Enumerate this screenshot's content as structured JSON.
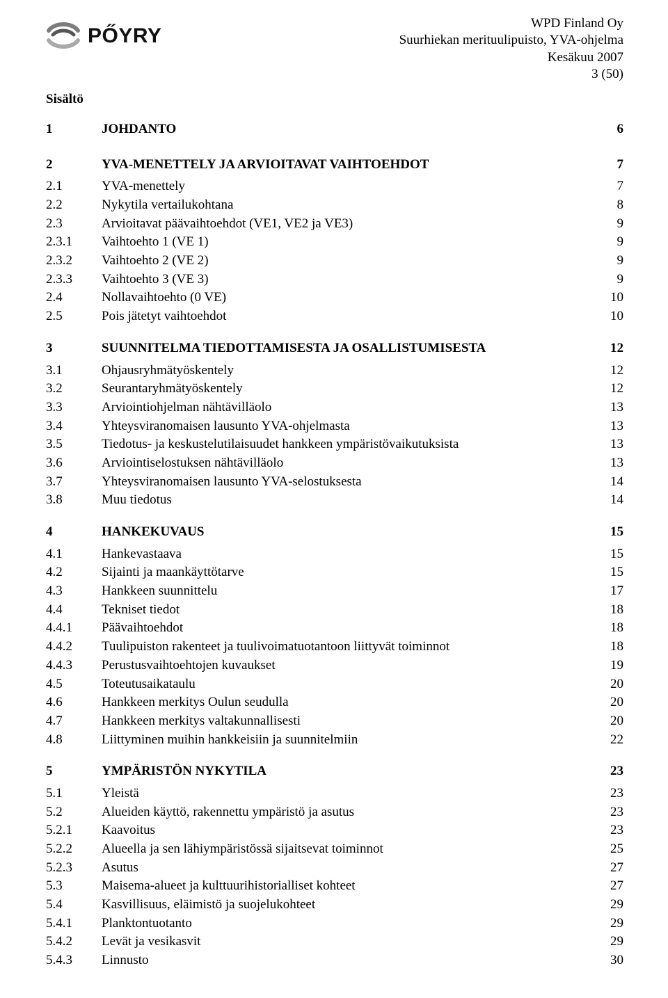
{
  "header": {
    "logo_brand": "PŐYRY",
    "meta": {
      "company": "WPD Finland Oy",
      "project": "Suurhiekan merituulipuisto, YVA-ohjelma",
      "date": "Kesäkuu 2007",
      "page": "3 (50)"
    }
  },
  "subtitle": "Sisältö",
  "toc": [
    {
      "level": 1,
      "num": "1",
      "title": "JOHDANTO",
      "page": "6"
    },
    {
      "level": 1,
      "num": "2",
      "title": "YVA-MENETTELY JA ARVIOITAVAT VAIHTOEHDOT",
      "page": "7"
    },
    {
      "level": 2,
      "num": "2.1",
      "title": "YVA-menettely",
      "page": "7"
    },
    {
      "level": 2,
      "num": "2.2",
      "title": "Nykytila vertailukohtana",
      "page": "8"
    },
    {
      "level": 2,
      "num": "2.3",
      "title": "Arvioitavat päävaihtoehdot (VE1, VE2 ja VE3)",
      "page": "9"
    },
    {
      "level": 3,
      "num": "2.3.1",
      "title": "Vaihtoehto 1 (VE 1)",
      "page": "9"
    },
    {
      "level": 3,
      "num": "2.3.2",
      "title": "Vaihtoehto 2 (VE 2)",
      "page": "9"
    },
    {
      "level": 3,
      "num": "2.3.3",
      "title": "Vaihtoehto 3 (VE 3)",
      "page": "9"
    },
    {
      "level": 2,
      "num": "2.4",
      "title": "Nollavaihtoehto (0 VE)",
      "page": "10"
    },
    {
      "level": 2,
      "num": "2.5",
      "title": "Pois jätetyt vaihtoehdot",
      "page": "10"
    },
    {
      "level": 1,
      "num": "3",
      "title": "SUUNNITELMA TIEDOTTAMISESTA JA OSALLISTUMISESTA",
      "page": "12"
    },
    {
      "level": 2,
      "num": "3.1",
      "title": "Ohjausryhmätyöskentely",
      "page": "12"
    },
    {
      "level": 2,
      "num": "3.2",
      "title": "Seurantaryhmätyöskentely",
      "page": "12"
    },
    {
      "level": 2,
      "num": "3.3",
      "title": "Arviointiohjelman nähtävilläolo",
      "page": "13"
    },
    {
      "level": 2,
      "num": "3.4",
      "title": "Yhteysviranomaisen lausunto YVA-ohjelmasta",
      "page": "13"
    },
    {
      "level": 2,
      "num": "3.5",
      "title": "Tiedotus- ja keskustelutilaisuudet hankkeen ympäristövaikutuksista",
      "page": "13"
    },
    {
      "level": 2,
      "num": "3.6",
      "title": "Arviointiselostuksen nähtävilläolo",
      "page": "13"
    },
    {
      "level": 2,
      "num": "3.7",
      "title": "Yhteysviranomaisen lausunto YVA-selostuksesta",
      "page": "14"
    },
    {
      "level": 2,
      "num": "3.8",
      "title": "Muu tiedotus",
      "page": "14"
    },
    {
      "level": 1,
      "num": "4",
      "title": "HANKEKUVAUS",
      "page": "15"
    },
    {
      "level": 2,
      "num": "4.1",
      "title": "Hankevastaava",
      "page": "15"
    },
    {
      "level": 2,
      "num": "4.2",
      "title": "Sijainti ja maankäyttötarve",
      "page": "15"
    },
    {
      "level": 2,
      "num": "4.3",
      "title": "Hankkeen suunnittelu",
      "page": "17"
    },
    {
      "level": 2,
      "num": "4.4",
      "title": "Tekniset tiedot",
      "page": "18"
    },
    {
      "level": 3,
      "num": "4.4.1",
      "title": "Päävaihtoehdot",
      "page": "18"
    },
    {
      "level": 3,
      "num": "4.4.2",
      "title": "Tuulipuiston rakenteet ja tuulivoimatuotantoon liittyvät toiminnot",
      "page": "18"
    },
    {
      "level": 3,
      "num": "4.4.3",
      "title": "Perustusvaihtoehtojen kuvaukset",
      "page": "19"
    },
    {
      "level": 2,
      "num": "4.5",
      "title": "Toteutusaikataulu",
      "page": "20"
    },
    {
      "level": 2,
      "num": "4.6",
      "title": "Hankkeen merkitys Oulun seudulla",
      "page": "20"
    },
    {
      "level": 2,
      "num": "4.7",
      "title": "Hankkeen merkitys valtakunnallisesti",
      "page": "20"
    },
    {
      "level": 2,
      "num": "4.8",
      "title": "Liittyminen muihin hankkeisiin ja suunnitelmiin",
      "page": "22"
    },
    {
      "level": 1,
      "num": "5",
      "title": "YMPÄRISTÖN NYKYTILA",
      "page": "23"
    },
    {
      "level": 2,
      "num": "5.1",
      "title": "Yleistä",
      "page": "23"
    },
    {
      "level": 2,
      "num": "5.2",
      "title": "Alueiden käyttö, rakennettu ympäristö ja asutus",
      "page": "23"
    },
    {
      "level": 3,
      "num": "5.2.1",
      "title": "Kaavoitus",
      "page": "23"
    },
    {
      "level": 3,
      "num": "5.2.2",
      "title": "Alueella ja sen lähiympäristössä sijaitsevat toiminnot",
      "page": "25"
    },
    {
      "level": 3,
      "num": "5.2.3",
      "title": "Asutus",
      "page": "27"
    },
    {
      "level": 2,
      "num": "5.3",
      "title": "Maisema-alueet ja kulttuurihistorialliset kohteet",
      "page": "27"
    },
    {
      "level": 2,
      "num": "5.4",
      "title": "Kasvillisuus, eläimistö ja suojelukohteet",
      "page": "29"
    },
    {
      "level": 3,
      "num": "5.4.1",
      "title": "Planktontuotanto",
      "page": "29"
    },
    {
      "level": 3,
      "num": "5.4.2",
      "title": "Levät ja vesikasvit",
      "page": "29"
    },
    {
      "level": 3,
      "num": "5.4.3",
      "title": "Linnusto",
      "page": "30"
    }
  ]
}
